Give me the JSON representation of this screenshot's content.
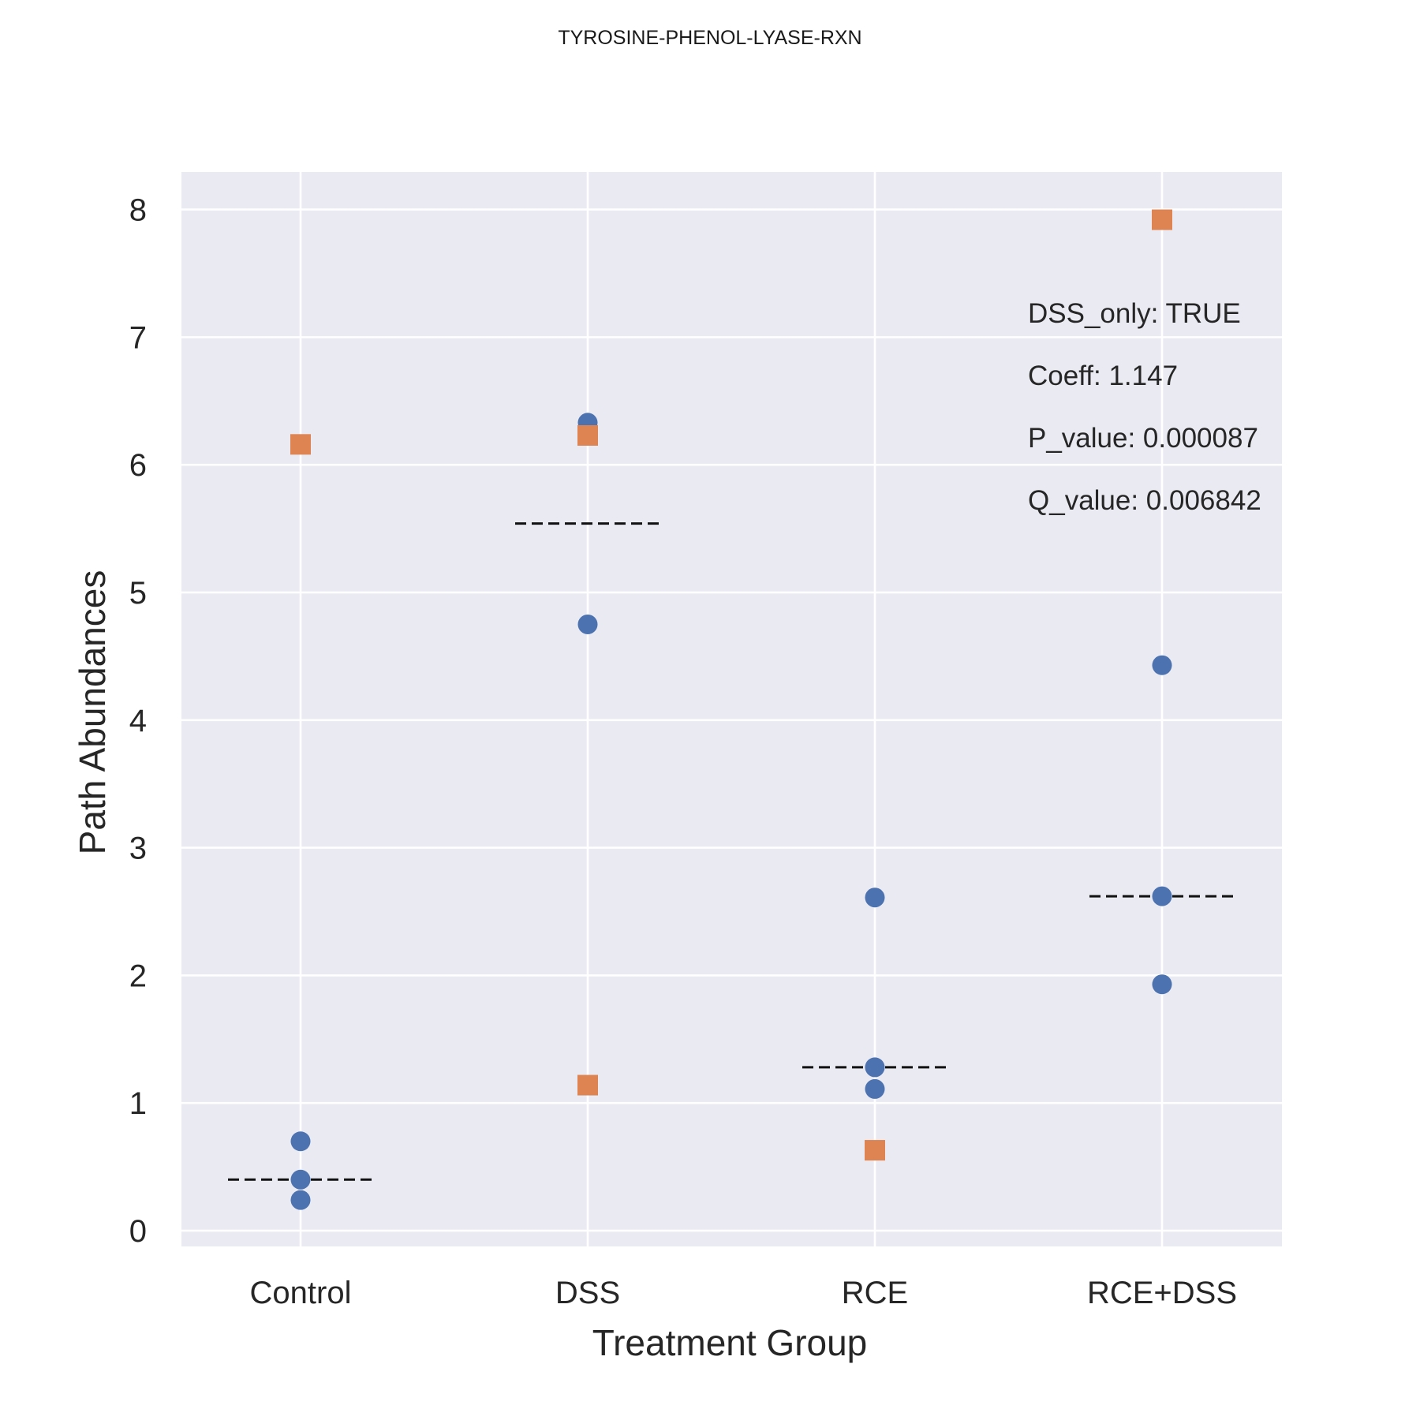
{
  "chart_data": {
    "type": "scatter",
    "title": "TYROSINE-PHENOL-LYASE-RXN",
    "xlabel": "Treatment Group",
    "ylabel": "Path Abundances",
    "categories": [
      "Control",
      "DSS",
      "RCE",
      "RCE+DSS"
    ],
    "ylim": [
      -0.13,
      8.3
    ],
    "yticks": [
      0,
      1,
      2,
      3,
      4,
      5,
      6,
      7,
      8
    ],
    "grid": true,
    "background": "#eaeaf2",
    "series": [
      {
        "marker": "circle",
        "color": "#4c72b0",
        "points": [
          {
            "category": "Control",
            "y": 0.7
          },
          {
            "category": "Control",
            "y": 0.4
          },
          {
            "category": "Control",
            "y": 0.24
          },
          {
            "category": "DSS",
            "y": 6.33
          },
          {
            "category": "DSS",
            "y": 4.75
          },
          {
            "category": "RCE",
            "y": 2.61
          },
          {
            "category": "RCE",
            "y": 1.28
          },
          {
            "category": "RCE",
            "y": 1.11
          },
          {
            "category": "RCE+DSS",
            "y": 4.43
          },
          {
            "category": "RCE+DSS",
            "y": 2.62
          },
          {
            "category": "RCE+DSS",
            "y": 1.93
          }
        ]
      },
      {
        "marker": "square",
        "color": "#dd8452",
        "points": [
          {
            "category": "Control",
            "y": 6.16
          },
          {
            "category": "DSS",
            "y": 6.23
          },
          {
            "category": "DSS",
            "y": 1.14
          },
          {
            "category": "RCE",
            "y": 0.63
          },
          {
            "category": "RCE+DSS",
            "y": 7.92
          }
        ]
      }
    ],
    "medians": [
      {
        "category": "Control",
        "y": 0.4
      },
      {
        "category": "DSS",
        "y": 5.54
      },
      {
        "category": "RCE",
        "y": 1.28
      },
      {
        "category": "RCE+DSS",
        "y": 2.62
      }
    ],
    "annotations": [
      "DSS_only: TRUE",
      "Coeff: 1.147",
      "P_value: 0.000087",
      "Q_value: 0.006842"
    ]
  }
}
